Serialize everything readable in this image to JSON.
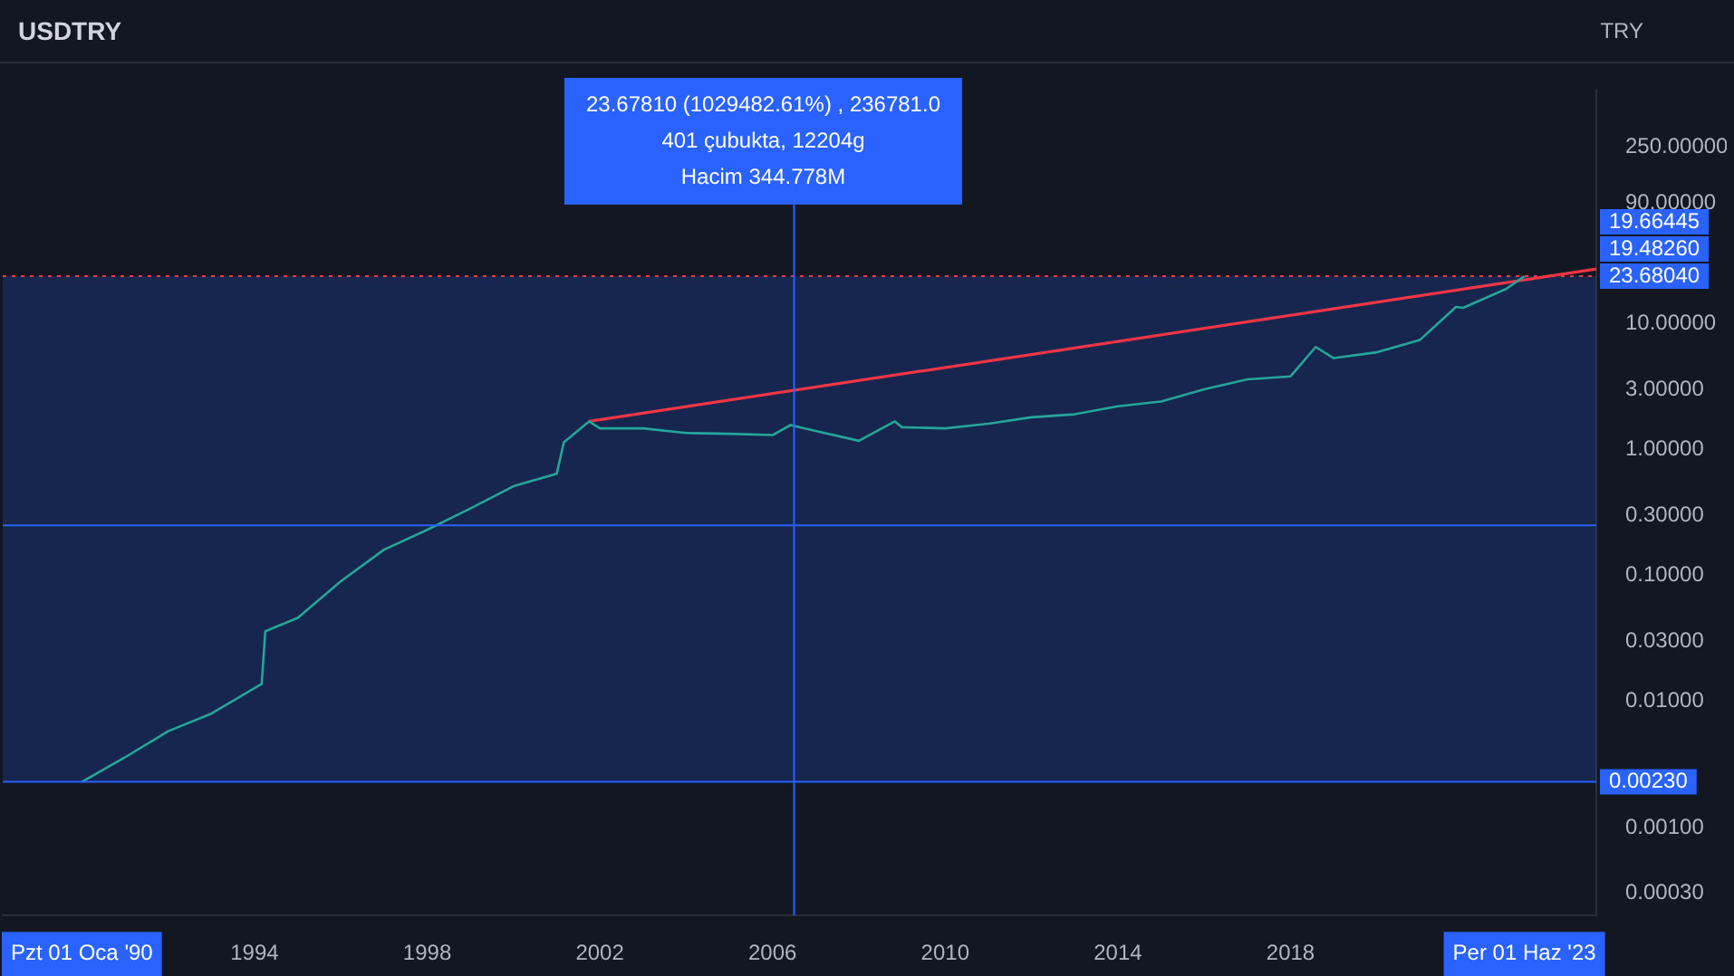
{
  "chart_data": {
    "type": "line",
    "title": "USDTRY",
    "ylabel": "TRY",
    "log": true,
    "grid": false,
    "legend": false,
    "xlim": [
      "1988-03",
      "2025-02"
    ],
    "xticks": [
      {
        "value": "1990-01",
        "label": "Pzt 01 Oca '90"
      },
      "1994",
      "1998",
      "2002",
      "2006",
      "2010",
      "2014",
      "2018",
      {
        "value": "2023-06",
        "label": "Per 01 Haz '23"
      }
    ],
    "ylim": [
      0.0002,
      700
    ],
    "yticks": [
      {
        "value": 250,
        "label": "250.00000"
      },
      {
        "value": 90,
        "label": "90.00000"
      },
      {
        "value": 10,
        "label": "10.00000"
      },
      {
        "value": 3,
        "label": "3.00000"
      },
      {
        "value": 1,
        "label": "1.00000"
      },
      {
        "value": 0.3,
        "label": "0.30000"
      },
      {
        "value": 0.1,
        "label": "0.10000"
      },
      {
        "value": 0.03,
        "label": "0.03000"
      },
      {
        "value": 0.01,
        "label": "0.01000"
      },
      {
        "value": 0.001,
        "label": "0.00100"
      },
      {
        "value": 0.0003,
        "label": "0.00030"
      }
    ],
    "series": [
      {
        "color": "#26a69a",
        "x": [
          "1990-01",
          "1991-01",
          "1992-01",
          "1993-01",
          "1994-03",
          "1994-04",
          "1995-01",
          "1996-01",
          "1997-01",
          "1998-01",
          "1999-01",
          "2000-01",
          "2001-01",
          "2001-03",
          "2001-10",
          "2002-01",
          "2003-01",
          "2004-01",
          "2005-01",
          "2006-01",
          "2006-06",
          "2007-01",
          "2008-01",
          "2008-11",
          "2009-01",
          "2010-01",
          "2011-01",
          "2012-01",
          "2013-01",
          "2014-01",
          "2015-01",
          "2016-01",
          "2017-01",
          "2018-01",
          "2018-08",
          "2019-01",
          "2020-01",
          "2021-01",
          "2021-11",
          "2022-01",
          "2023-01",
          "2023-06"
        ],
        "values": [
          0.0023,
          0.0036,
          0.0058,
          0.008,
          0.0138,
          0.036,
          0.046,
          0.09,
          0.16,
          0.23,
          0.34,
          0.51,
          0.64,
          1.14,
          1.67,
          1.47,
          1.47,
          1.35,
          1.33,
          1.3,
          1.56,
          1.4,
          1.17,
          1.67,
          1.5,
          1.47,
          1.6,
          1.8,
          1.9,
          2.2,
          2.4,
          3.0,
          3.6,
          3.8,
          6.5,
          5.3,
          5.9,
          7.4,
          13.5,
          13.3,
          18.8,
          23.6804
        ]
      },
      {
        "type": "line",
        "color": "#f23645",
        "x": [
          "2001-10",
          "2025-02"
        ],
        "values": [
          1.67,
          27
        ]
      }
    ],
    "bands": [
      {
        "axis": "y",
        "from": 0.0023,
        "to": 23.68,
        "color": "#2962ff"
      }
    ],
    "ref_lines": [
      {
        "axis": "y",
        "value": 23.6804,
        "color": "#f23645",
        "line_style": "dotted",
        "label": "23.68040"
      },
      {
        "axis": "y",
        "value": 0.0023,
        "color": "#2962ff",
        "label": "0.00230"
      },
      {
        "axis": "x",
        "value": "2006-07",
        "color": "#2962ff"
      },
      {
        "axis": "y",
        "value": 0.25,
        "color": "#2962ff"
      }
    ],
    "annotations": [
      "23.67810 (1029482.61%) , 236781.0\n401 çubukta, 12204g\nHacim 344.778M",
      "19.66445",
      "19.48260"
    ]
  }
}
